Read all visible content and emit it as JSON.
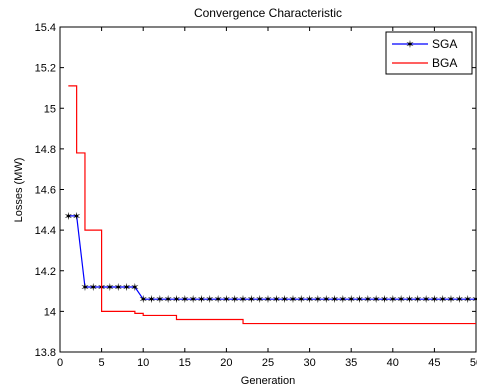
{
  "chart_data": {
    "type": "line",
    "title": "Convergence Characteristic",
    "xlabel": "Generation",
    "ylabel": "Losses (MW)",
    "xlim": [
      0,
      50
    ],
    "ylim": [
      13.8,
      15.4
    ],
    "xticks": [
      "0",
      "5",
      "10",
      "15",
      "20",
      "25",
      "30",
      "35",
      "40",
      "45",
      "50"
    ],
    "yticks": [
      "13.8",
      "14",
      "14.2",
      "14.4",
      "14.6",
      "14.8",
      "15",
      "15.2",
      "15.4"
    ],
    "grid": false,
    "legend_position": "top-right",
    "series": [
      {
        "name": "SGA",
        "color": "#0000ff",
        "marker": "star",
        "x": [
          1,
          2,
          3,
          4,
          5,
          6,
          7,
          8,
          9,
          10,
          11,
          12,
          13,
          14,
          15,
          16,
          17,
          18,
          19,
          20,
          21,
          22,
          23,
          24,
          25,
          26,
          27,
          28,
          29,
          30,
          31,
          32,
          33,
          34,
          35,
          36,
          37,
          38,
          39,
          40,
          41,
          42,
          43,
          44,
          45,
          46,
          47,
          48,
          49,
          50
        ],
        "y": [
          14.47,
          14.47,
          14.12,
          14.12,
          14.12,
          14.12,
          14.12,
          14.12,
          14.12,
          14.06,
          14.06,
          14.06,
          14.06,
          14.06,
          14.06,
          14.06,
          14.06,
          14.06,
          14.06,
          14.06,
          14.06,
          14.06,
          14.06,
          14.06,
          14.06,
          14.06,
          14.06,
          14.06,
          14.06,
          14.06,
          14.06,
          14.06,
          14.06,
          14.06,
          14.06,
          14.06,
          14.06,
          14.06,
          14.06,
          14.06,
          14.06,
          14.06,
          14.06,
          14.06,
          14.06,
          14.06,
          14.06,
          14.06,
          14.06,
          14.06
        ]
      },
      {
        "name": "BGA",
        "color": "#ff0000",
        "marker": "none",
        "step": true,
        "x": [
          1,
          2,
          3,
          4,
          5,
          6,
          7,
          8,
          9,
          10,
          11,
          12,
          13,
          14,
          15,
          16,
          17,
          18,
          19,
          20,
          21,
          22,
          23,
          24,
          25,
          26,
          27,
          28,
          29,
          30,
          31,
          32,
          33,
          34,
          35,
          36,
          37,
          38,
          39,
          40,
          41,
          42,
          43,
          44,
          45,
          46,
          47,
          48,
          49,
          50
        ],
        "y": [
          15.11,
          14.78,
          14.4,
          14.4,
          14.0,
          14.0,
          14.0,
          14.0,
          13.99,
          13.98,
          13.98,
          13.98,
          13.98,
          13.96,
          13.96,
          13.96,
          13.96,
          13.96,
          13.96,
          13.96,
          13.96,
          13.94,
          13.94,
          13.94,
          13.94,
          13.94,
          13.94,
          13.94,
          13.94,
          13.94,
          13.94,
          13.94,
          13.94,
          13.94,
          13.94,
          13.94,
          13.94,
          13.94,
          13.94,
          13.94,
          13.94,
          13.94,
          13.94,
          13.94,
          13.94,
          13.94,
          13.94,
          13.94,
          13.94,
          13.94
        ]
      }
    ]
  }
}
